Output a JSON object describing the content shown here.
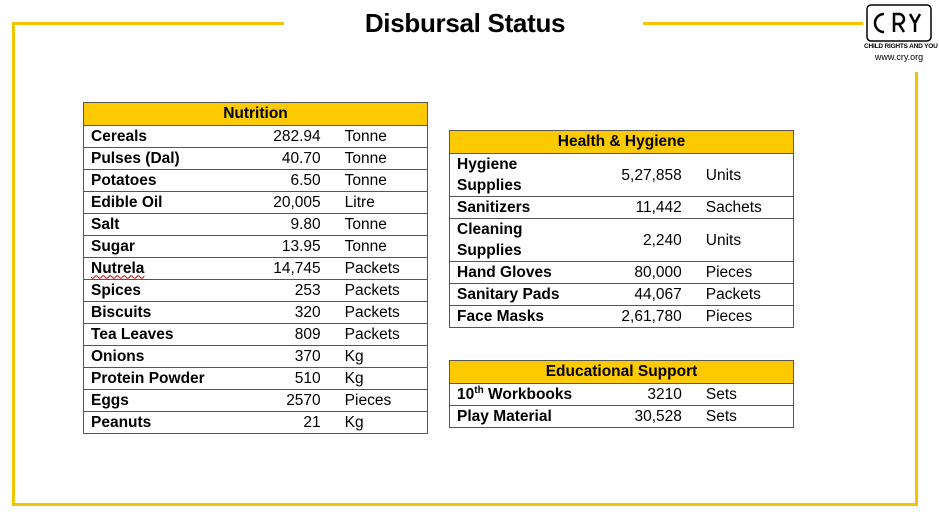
{
  "title": "Disbursal Status",
  "logo": {
    "text": "CRY",
    "tagline": "CHILD RIGHTS AND YOU",
    "url": "www.cry.org"
  },
  "colors": {
    "accent": "#fdca00",
    "frame": "#f5c400"
  },
  "nutrition": {
    "header": "Nutrition",
    "rows": [
      {
        "name": "Cereals",
        "qty": "282.94",
        "unit": "Tonne"
      },
      {
        "name": "Pulses (Dal)",
        "qty": "40.70",
        "unit": "Tonne"
      },
      {
        "name": "Potatoes",
        "qty": "6.50",
        "unit": "Tonne"
      },
      {
        "name": "Edible Oil",
        "qty": "20,005",
        "unit": "Litre"
      },
      {
        "name": "Salt",
        "qty": "9.80",
        "unit": "Tonne"
      },
      {
        "name": "Sugar",
        "qty": "13.95",
        "unit": "Tonne"
      },
      {
        "name": "Nutrela",
        "qty": "14,745",
        "unit": "Packets"
      },
      {
        "name": "Spices",
        "qty": "253",
        "unit": "Packets"
      },
      {
        "name": "Biscuits",
        "qty": "320",
        "unit": "Packets"
      },
      {
        "name": "Tea Leaves",
        "qty": "809",
        "unit": "Packets"
      },
      {
        "name": "Onions",
        "qty": "370",
        "unit": "Kg"
      },
      {
        "name": "Protein Powder",
        "qty": "510",
        "unit": "Kg"
      },
      {
        "name": "Eggs",
        "qty": "2570",
        "unit": "Pieces"
      },
      {
        "name": "Peanuts",
        "qty": "21",
        "unit": "Kg"
      }
    ]
  },
  "health": {
    "header": "Health & Hygiene",
    "rows": [
      {
        "name_line1": "Hygiene",
        "name_line2": "Supplies",
        "qty": "5,27,858",
        "unit": "Units"
      },
      {
        "name": "Sanitizers",
        "qty": "11,442",
        "unit": "Sachets"
      },
      {
        "name_line1": "Cleaning",
        "name_line2": "Supplies",
        "qty": "2,240",
        "unit": "Units"
      },
      {
        "name": "Hand Gloves",
        "qty": "80,000",
        "unit": "Pieces"
      },
      {
        "name": "Sanitary Pads",
        "qty": "44,067",
        "unit": "Packets"
      },
      {
        "name": "Face Masks",
        "qty": "2,61,780",
        "unit": "Pieces"
      }
    ]
  },
  "education": {
    "header": "Educational Support",
    "rows": [
      {
        "name_num": "10",
        "name_sup": "th",
        "name_rest": " Workbooks",
        "qty": "3210",
        "unit": "Sets"
      },
      {
        "name": "Play Material",
        "qty": "30,528",
        "unit": "Sets"
      }
    ]
  }
}
